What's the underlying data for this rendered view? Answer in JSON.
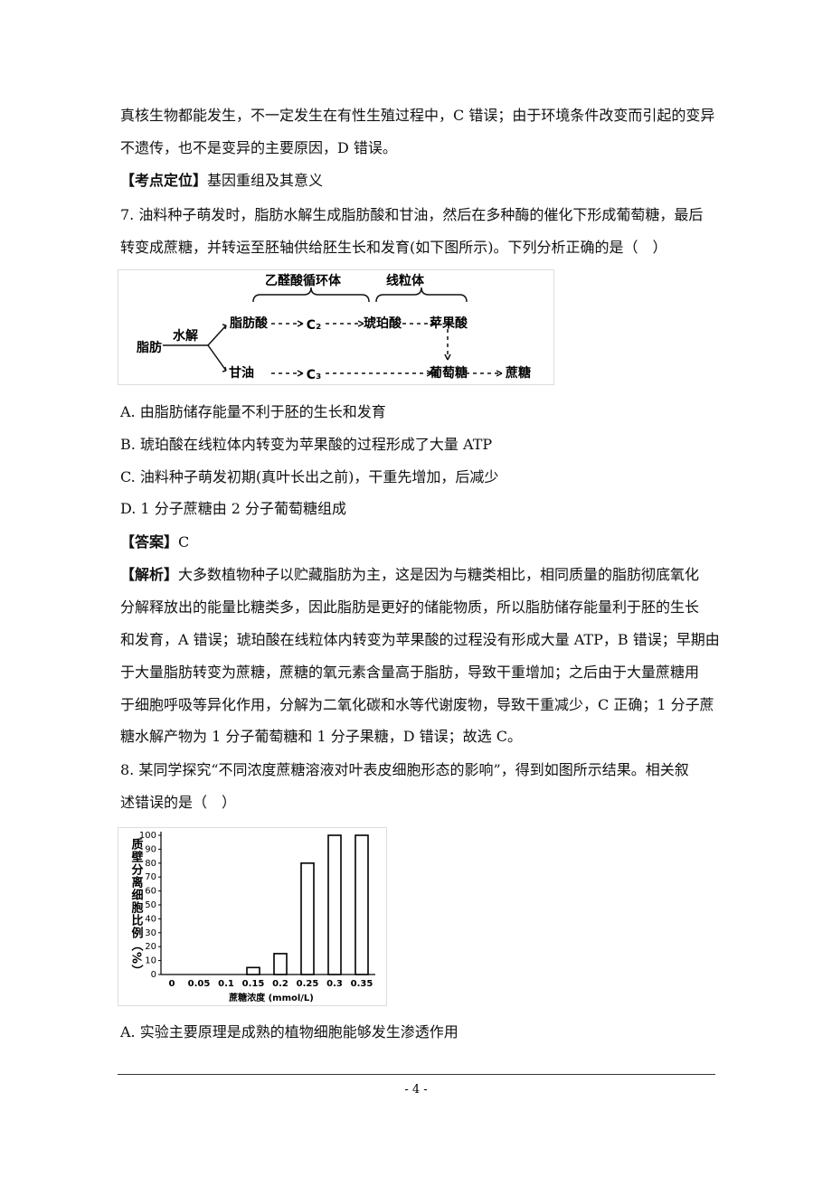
{
  "passage_lines": [
    "真核生物都能发生，不一定发生在有性生殖过程中，C 错误；由于环境条件改变而引起的变异",
    "不遗传，也不是变异的主要原因，D 错误。"
  ],
  "key_point": {
    "label": "【考点定位】",
    "text": "基因重组及其意义"
  },
  "q7": {
    "stem_lines": [
      "7.  油料种子萌发时，脂肪水解生成脂肪酸和甘油，然后在多种酶的催化下形成葡萄糖，最后",
      "转变成蔗糖，并转运至胚轴供给胚生长和发育(如下图所示)。下列分析正确的是（　）"
    ],
    "options": [
      "A.  由脂肪储存能量不利于胚的生长和发育",
      "B.  琥珀酸在线粒体内转变为苹果酸的过程形成了大量 ATP",
      "C.  油料种子萌发初期(真叶长出之前)，干重先增加，后减少",
      "D.  1 分子蔗糖由 2 分子葡萄糖组成"
    ]
  },
  "diagram": {
    "nodes": [
      "乙醛酸循环体",
      "线粒体",
      "脂肪",
      "水解",
      "脂肪酸",
      "C₂",
      "琥珀酸",
      "苹果酸",
      "甘油",
      "C₃",
      "葡萄糖",
      "蔗糖"
    ]
  },
  "answer": {
    "label": "【答案】",
    "text": "C"
  },
  "analysis": {
    "label": "【解析】",
    "lines": [
      "大多数植物种子以贮藏脂肪为主，这是因为与糖类相比，相同质量的脂肪彻底氧化",
      "分解释放出的能量比糖类多，因此脂肪是更好的储能物质，所以脂肪储存能量利于胚的生长",
      "和发育，A 错误；琥珀酸在线粒体内转变为苹果酸的过程没有形成大量 ATP，B 错误；早期由",
      "于大量脂肪转变为蔗糖，蔗糖的氧元素含量高于脂肪，导致干重增加；之后由于大量蔗糖用",
      "于细胞呼吸等异化作用，分解为二氧化碳和水等代谢废物，导致干重减少，C 正确；1 分子蔗",
      "糖水解产物为 1 分子葡萄糖和 1 分子果糖，D 错误；故选 C。"
    ]
  },
  "q8": {
    "stem_lines": [
      "8.  某同学探究“不同浓度蔗糖溶液对叶表皮细胞形态的影响”，得到如图所示结果。相关叙",
      "述错误的是（　）"
    ],
    "options": [
      "A.  实验主要原理是成熟的植物细胞能够发生渗透作用"
    ]
  },
  "chart_data": {
    "type": "bar",
    "x_label": "蔗糖浓度 (mmol/L)",
    "y_label": "质壁分离细胞比例（%）",
    "categories": [
      "0",
      "0.05",
      "0.1",
      "0.15",
      "0.2",
      "0.25",
      "0.3",
      "0.35"
    ],
    "values": [
      0,
      0,
      0,
      5,
      15,
      80,
      100,
      100
    ],
    "color": "#ffffff",
    "edge_color": "#000000",
    "ylim": [
      0,
      100
    ],
    "yticks": [
      0,
      10,
      20,
      30,
      40,
      50,
      60,
      70,
      80,
      90,
      100
    ],
    "grid": false
  },
  "footer": {
    "page": "- 4 -"
  }
}
